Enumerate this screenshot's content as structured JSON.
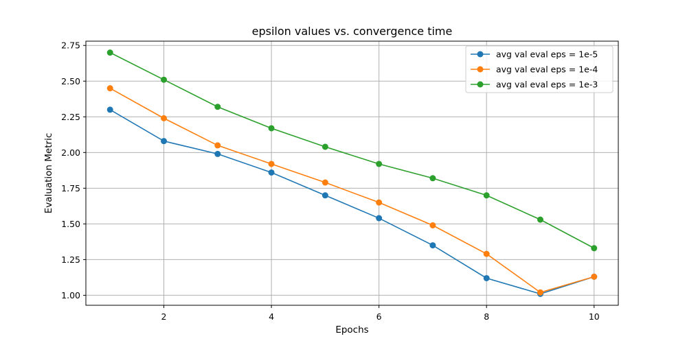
{
  "chart_data": {
    "type": "line",
    "title": "epsilon values vs. convergence time",
    "xlabel": "Epochs",
    "ylabel": "Evaluation Metric",
    "x": [
      1,
      2,
      3,
      4,
      5,
      6,
      7,
      8,
      9,
      10
    ],
    "xlim": [
      0.55,
      10.45
    ],
    "ylim": [
      0.93,
      2.78
    ],
    "xticks": [
      2,
      4,
      6,
      8,
      10
    ],
    "xtick_labels": [
      "2",
      "4",
      "6",
      "8",
      "10"
    ],
    "yticks": [
      1.0,
      1.25,
      1.5,
      1.75,
      2.0,
      2.25,
      2.5,
      2.75
    ],
    "ytick_labels": [
      "1.00",
      "1.25",
      "1.50",
      "1.75",
      "2.00",
      "2.25",
      "2.50",
      "2.75"
    ],
    "grid": true,
    "legend_position": "top-right",
    "series": [
      {
        "name": "avg val eval eps = 1e-5",
        "color": "#1f77b4",
        "values": [
          2.3,
          2.08,
          1.99,
          1.86,
          1.7,
          1.54,
          1.35,
          1.12,
          1.01,
          1.13
        ]
      },
      {
        "name": "avg val eval eps = 1e-4",
        "color": "#ff7f0e",
        "values": [
          2.45,
          2.24,
          2.05,
          1.92,
          1.79,
          1.65,
          1.49,
          1.29,
          1.02,
          1.13
        ]
      },
      {
        "name": "avg val eval eps = 1e-3",
        "color": "#2ca02c",
        "values": [
          2.7,
          2.51,
          2.32,
          2.17,
          2.04,
          1.92,
          1.82,
          1.7,
          1.53,
          1.33
        ]
      }
    ]
  }
}
